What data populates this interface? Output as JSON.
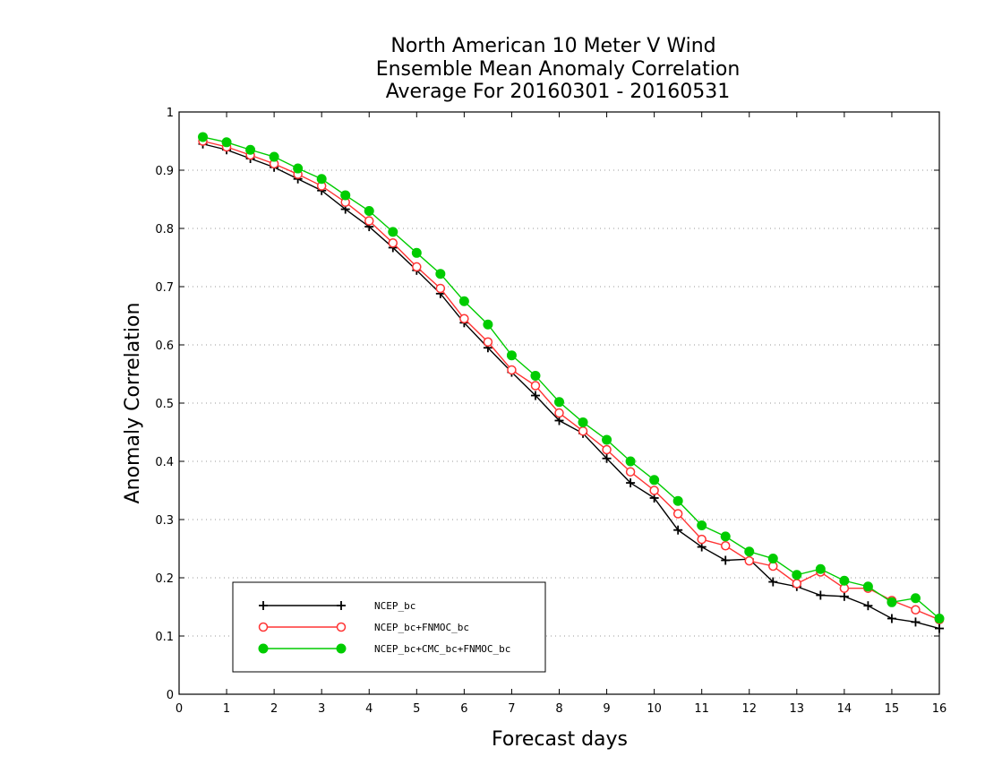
{
  "chart_data": {
    "type": "line",
    "title": "North American 10 Meter V Wind",
    "subtitle": "Ensemble Mean Anomaly Correlation",
    "subtitle2": "Average For 20160301 - 20160531",
    "xlabel": "Forecast days",
    "ylabel": "Anomaly Correlation",
    "xlim": [
      0,
      16
    ],
    "ylim": [
      0,
      1
    ],
    "xticks": [
      "0",
      "1",
      "2",
      "3",
      "4",
      "5",
      "6",
      "7",
      "8",
      "9",
      "10",
      "11",
      "12",
      "13",
      "14",
      "15",
      "16"
    ],
    "yticks": [
      "0",
      "0.1",
      "0.2",
      "0.3",
      "0.4",
      "0.5",
      "0.6",
      "0.7",
      "0.8",
      "0.9",
      "1"
    ],
    "grid": true,
    "legend_position": "bottom-left",
    "x": [
      0.5,
      1,
      1.5,
      2,
      2.5,
      3,
      3.5,
      4,
      4.5,
      5,
      5.5,
      6,
      6.5,
      7,
      7.5,
      8,
      8.5,
      9,
      9.5,
      10,
      10.5,
      11,
      11.5,
      12,
      12.5,
      13,
      13.5,
      14,
      14.5,
      15,
      15.5,
      16
    ],
    "series": [
      {
        "name": "NCEP_bc",
        "color": "#000000",
        "marker": "plus",
        "values": [
          0.945,
          0.935,
          0.92,
          0.905,
          0.885,
          0.865,
          0.833,
          0.803,
          0.767,
          0.728,
          0.688,
          0.638,
          0.595,
          0.553,
          0.513,
          0.47,
          0.448,
          0.405,
          0.363,
          0.337,
          0.282,
          0.253,
          0.23,
          0.232,
          0.193,
          0.185,
          0.17,
          0.168,
          0.152,
          0.13,
          0.124,
          0.113
        ]
      },
      {
        "name": "NCEP_bc+FNMOC_bc",
        "color": "#ff3333",
        "marker": "open-circle",
        "values": [
          0.95,
          0.94,
          0.926,
          0.911,
          0.893,
          0.873,
          0.845,
          0.813,
          0.775,
          0.734,
          0.697,
          0.645,
          0.605,
          0.557,
          0.53,
          0.483,
          0.452,
          0.42,
          0.382,
          0.35,
          0.31,
          0.266,
          0.255,
          0.229,
          0.22,
          0.19,
          0.21,
          0.182,
          0.182,
          0.161,
          0.145,
          0.128
        ]
      },
      {
        "name": "NCEP_bc+CMC_bc+FNMOC_bc",
        "color": "#00cc00",
        "marker": "filled-circle",
        "values": [
          0.957,
          0.948,
          0.935,
          0.923,
          0.903,
          0.885,
          0.857,
          0.83,
          0.794,
          0.758,
          0.722,
          0.675,
          0.635,
          0.582,
          0.547,
          0.502,
          0.467,
          0.437,
          0.4,
          0.368,
          0.332,
          0.29,
          0.271,
          0.245,
          0.233,
          0.205,
          0.215,
          0.195,
          0.185,
          0.158,
          0.165,
          0.13
        ]
      }
    ]
  }
}
